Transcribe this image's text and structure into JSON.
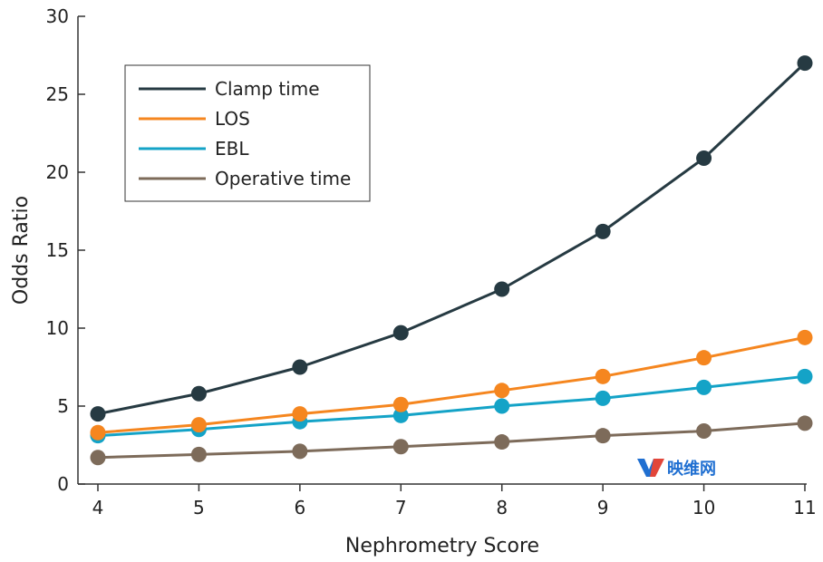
{
  "chart_data": {
    "type": "line",
    "title": "",
    "xlabel": "Nephrometry Score",
    "ylabel": "Odds  Ratio",
    "x": [
      4,
      5,
      6,
      7,
      8,
      9,
      10,
      11
    ],
    "xticks": [
      "4",
      "5",
      "6",
      "7",
      "8",
      "9",
      "10",
      "11"
    ],
    "xlim": [
      4,
      11
    ],
    "yticks": [
      "0",
      "5",
      "10",
      "15",
      "20",
      "25",
      "30"
    ],
    "ylim": [
      0,
      30
    ],
    "grid": false,
    "legend_position": "top-left",
    "series": [
      {
        "name": "Clamp time",
        "color": "#263a42",
        "values": [
          4.5,
          5.8,
          7.5,
          9.7,
          12.5,
          16.2,
          20.9,
          27.0
        ]
      },
      {
        "name": "LOS",
        "color": "#f5861f",
        "values": [
          3.3,
          3.8,
          4.5,
          5.1,
          6.0,
          6.9,
          8.1,
          9.4
        ]
      },
      {
        "name": "EBL",
        "color": "#14a3c7",
        "values": [
          3.1,
          3.5,
          4.0,
          4.4,
          5.0,
          5.5,
          6.2,
          6.9
        ]
      },
      {
        "name": "Operative time",
        "color": "#7d6b5a",
        "values": [
          1.7,
          1.9,
          2.1,
          2.4,
          2.7,
          3.1,
          3.4,
          3.9
        ]
      }
    ],
    "watermark": {
      "text": "映维网",
      "color": "#1f6fd1"
    }
  }
}
